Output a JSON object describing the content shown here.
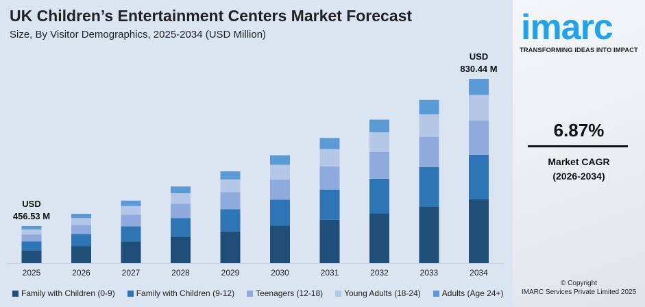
{
  "chart_data": {
    "type": "bar",
    "stacked": true,
    "title": "UK Children’s Entertainment Centers Market Forecast",
    "subtitle": "Size, By Visitor Demographics, 2025-2034 (USD Million)",
    "categories": [
      "2025",
      "2026",
      "2027",
      "2028",
      "2029",
      "2030",
      "2031",
      "2032",
      "2033",
      "2034"
    ],
    "totals": [
      456.53,
      487.9,
      521.4,
      557.2,
      595.5,
      636.4,
      680.2,
      726.9,
      776.9,
      830.44
    ],
    "series": [
      {
        "name": "Family with Children (0-9)",
        "color": "#1f4e79",
        "values": [
          158.0,
          168.8,
          180.4,
          192.8,
          206.0,
          220.2,
          235.3,
          251.5,
          268.8,
          287.3
        ]
      },
      {
        "name": "Family with Children (9-12)",
        "color": "#2e75b6",
        "values": [
          110.5,
          118.1,
          126.2,
          134.8,
          144.1,
          154.0,
          164.6,
          175.9,
          188.0,
          201.0
        ]
      },
      {
        "name": "Teenagers (12-18)",
        "color": "#8faadc",
        "values": [
          84.9,
          90.7,
          97.0,
          103.6,
          110.8,
          118.4,
          126.5,
          135.2,
          144.5,
          154.5
        ]
      },
      {
        "name": "Young Adults (18-24)",
        "color": "#b4c7e7",
        "values": [
          63.0,
          67.3,
          72.0,
          76.9,
          82.2,
          87.8,
          93.9,
          100.3,
          107.2,
          114.6
        ]
      },
      {
        "name": "Adults (Age 24+)",
        "color": "#5b9bd5",
        "values": [
          40.1,
          43.0,
          45.8,
          49.1,
          52.4,
          56.0,
          59.9,
          64.0,
          68.4,
          73.04
        ]
      }
    ],
    "annotations": [
      {
        "category": "2025",
        "line1": "USD",
        "line2": "456.53 M"
      },
      {
        "category": "2034",
        "line1": "USD",
        "line2": "830.44 M"
      }
    ],
    "grid": false,
    "legend": "bottom"
  },
  "brand": {
    "logo": "imarc",
    "tagline": "TRANSFORMING IDEAS INTO IMPACT"
  },
  "cagr": {
    "value": "6.87%",
    "label": "Market CAGR",
    "period": "(2026-2034)"
  },
  "copyright": {
    "line1": "© Copyright",
    "line2": "IMARC Services Private Limited 2025"
  }
}
